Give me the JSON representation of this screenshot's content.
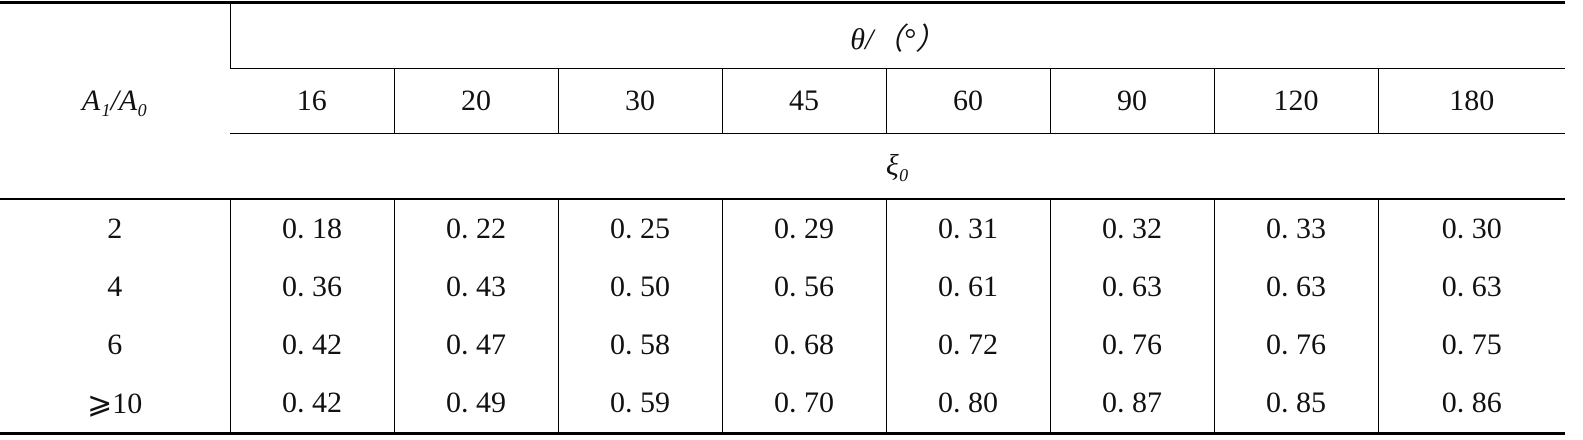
{
  "table": {
    "row_header": "A₁/A₀",
    "column_group": "θ/（°）",
    "angles": [
      16,
      20,
      30,
      45,
      60,
      90,
      120,
      180
    ],
    "value_label": "ξ₀",
    "rows": [
      {
        "ratio": "2",
        "values": [
          "0. 18",
          "0. 22",
          "0. 25",
          "0. 29",
          "0. 31",
          "0. 32",
          "0. 33",
          "0. 30"
        ]
      },
      {
        "ratio": "4",
        "values": [
          "0. 36",
          "0. 43",
          "0. 50",
          "0. 56",
          "0. 61",
          "0. 63",
          "0. 63",
          "0. 63"
        ]
      },
      {
        "ratio": "6",
        "values": [
          "0. 42",
          "0. 47",
          "0. 58",
          "0. 68",
          "0. 72",
          "0. 76",
          "0. 76",
          "0. 75"
        ]
      },
      {
        "ratio": "⩾10",
        "values": [
          "0. 42",
          "0. 49",
          "0. 59",
          "0. 70",
          "0. 80",
          "0. 87",
          "0. 85",
          "0. 86"
        ]
      }
    ]
  }
}
